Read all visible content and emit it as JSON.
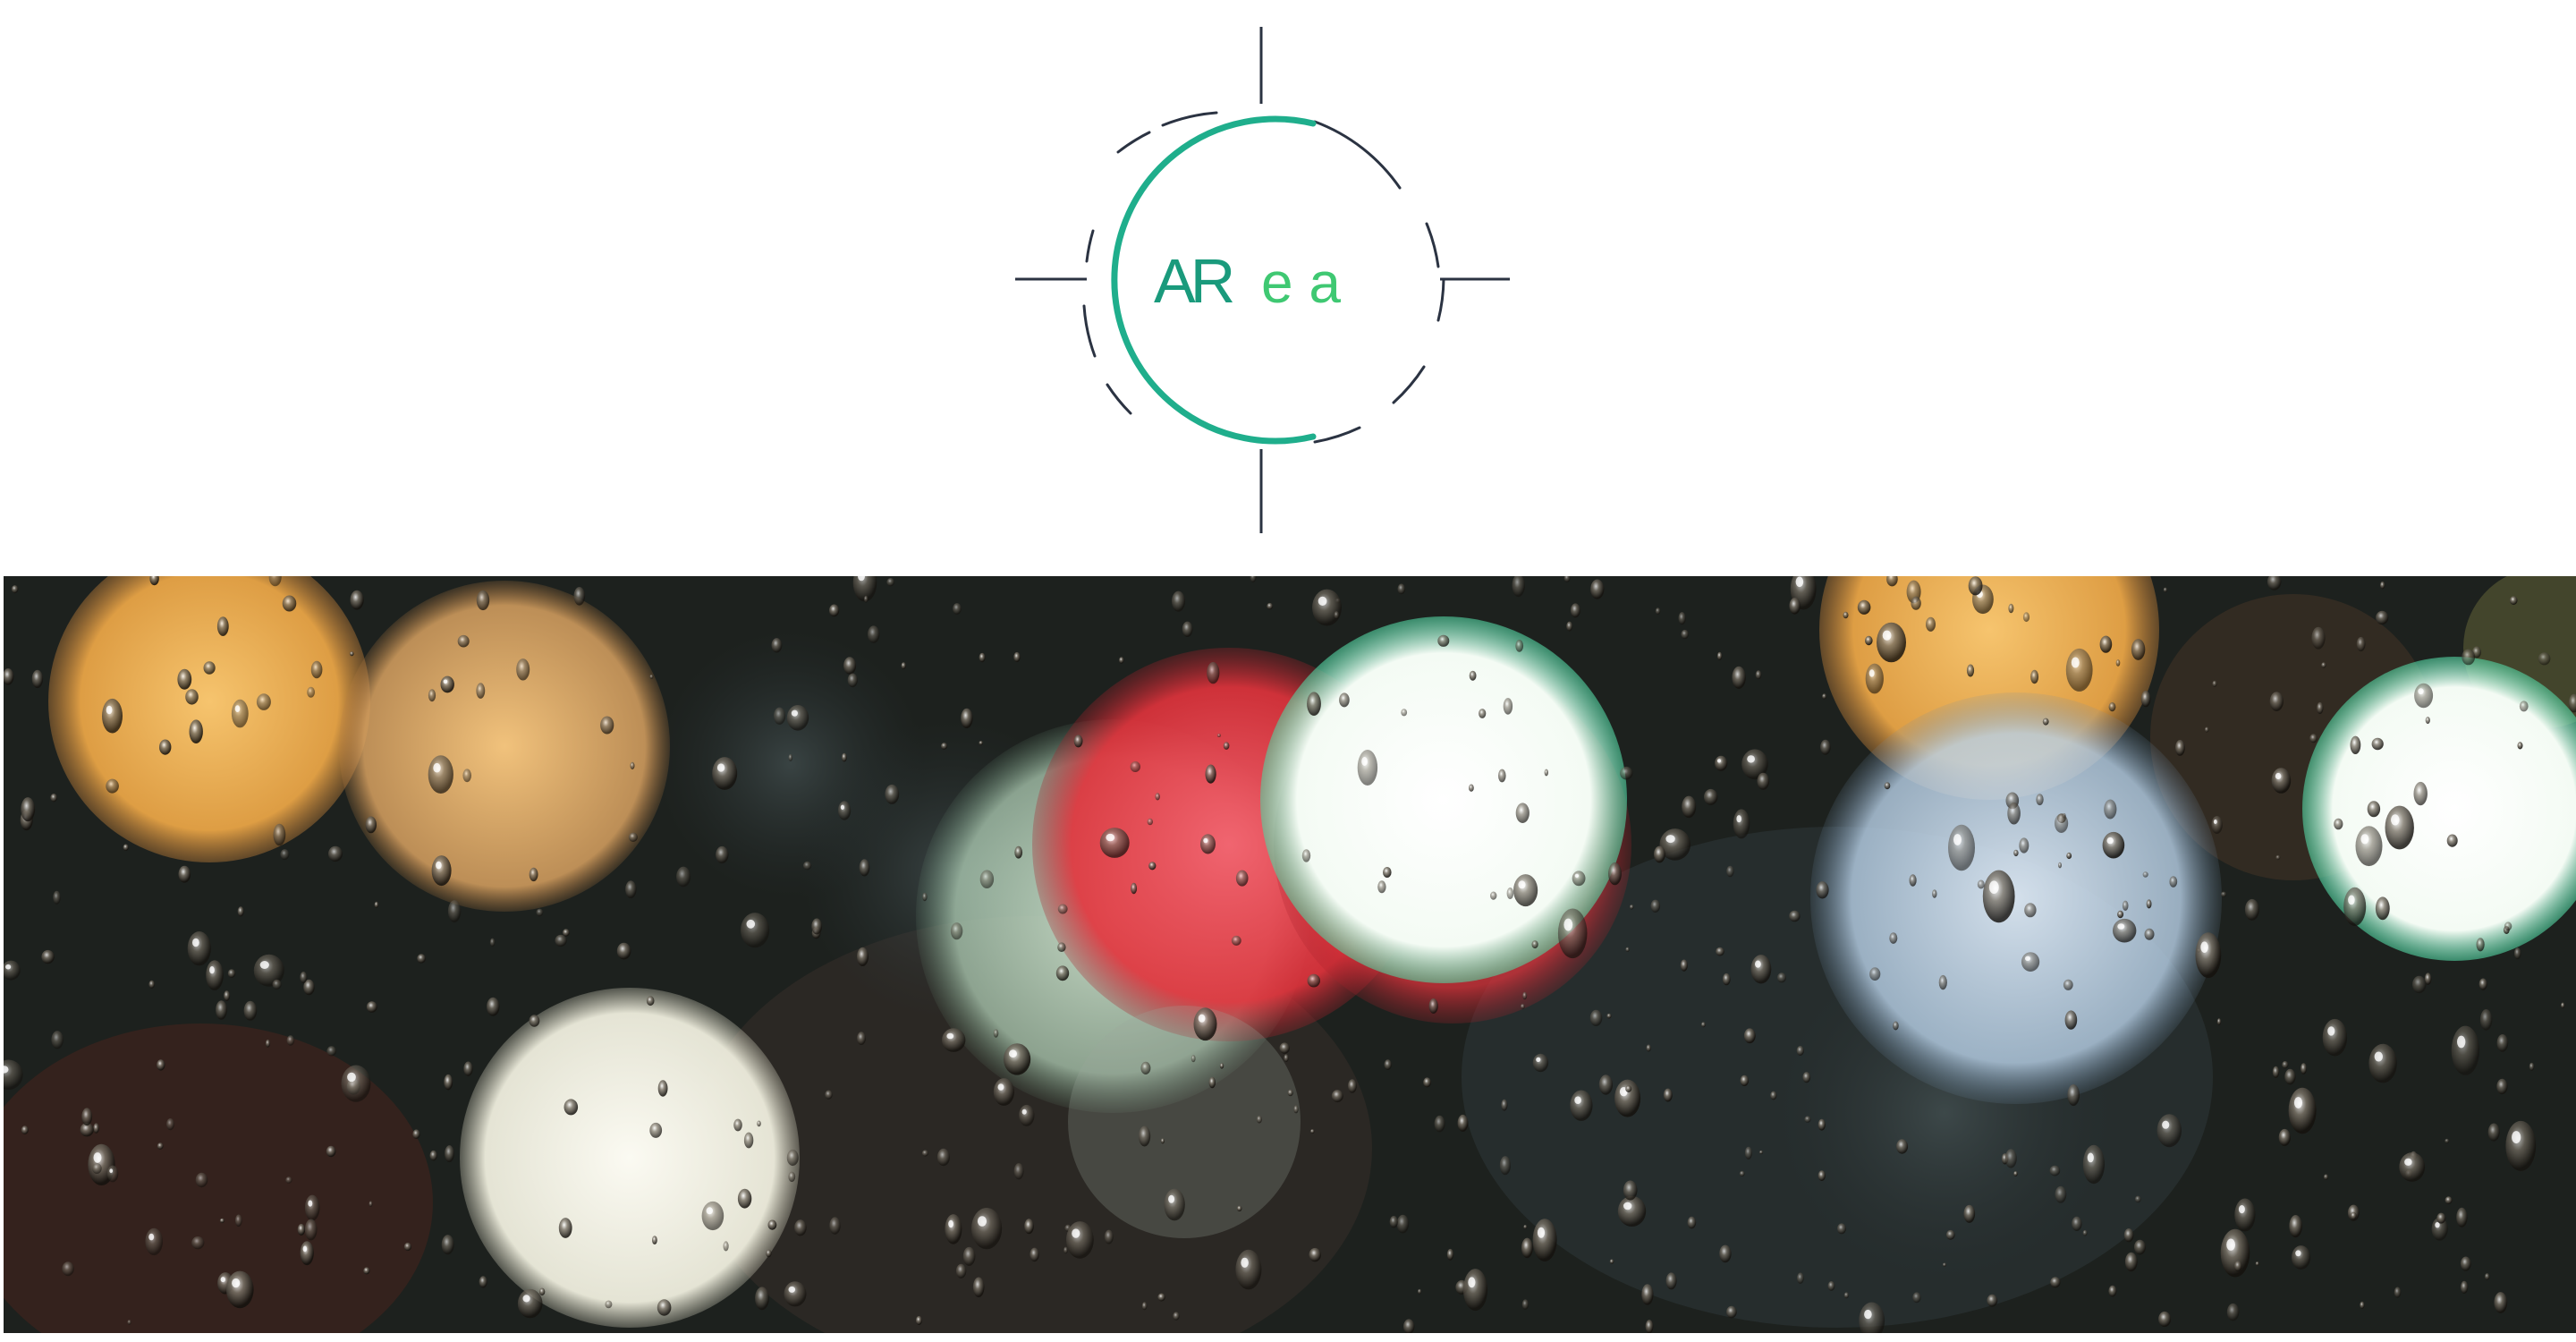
{
  "logo": {
    "text_primary": "AR",
    "text_secondary": "e a",
    "colors": {
      "ring": "#1fae8c",
      "text_primary": "#1a9a7c",
      "text_secondary": "#3fc872",
      "crosshair": "#2b3342"
    }
  },
  "hero": {
    "description_icon": "rain-drops-bokeh-image",
    "colors": {
      "amber": "#f2b55a",
      "white": "#f5f3ea",
      "red": "#e2333c",
      "mint": "#bfe8d4",
      "blue": "#cfe3f2"
    }
  }
}
